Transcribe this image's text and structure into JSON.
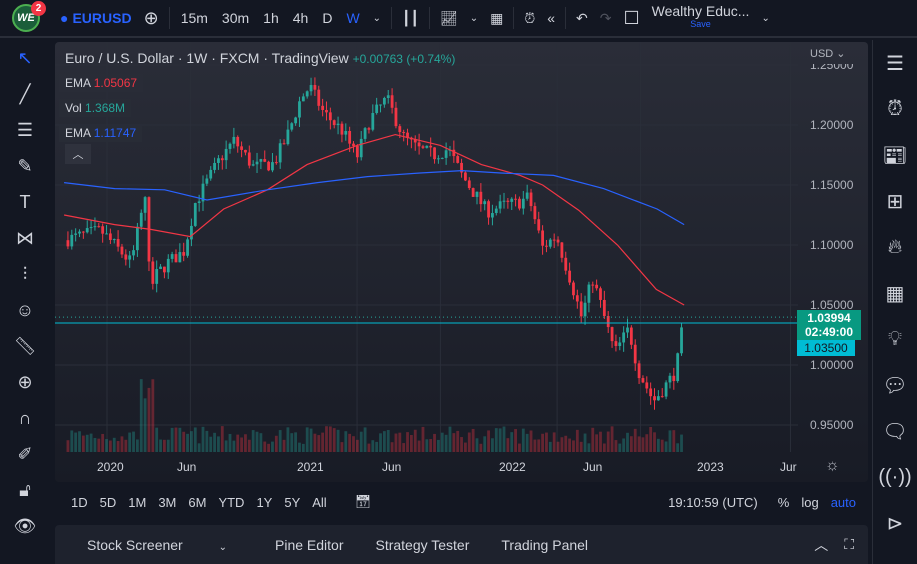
{
  "topbar": {
    "badge_count": "2",
    "logo": "WE",
    "symbol": "EURUSD",
    "intervals": [
      "15m",
      "30m",
      "1h",
      "4h",
      "D",
      "W"
    ],
    "active_interval": "W",
    "layout_name": "Wealthy Educ...",
    "save_label": "Save"
  },
  "legend": {
    "title": "Euro / U.S. Dollar · 1W · FXCM · TradingView",
    "change": "+0.00763 (+0.74%)",
    "indicators": [
      {
        "name": "EMA",
        "value": "1.05067",
        "color": "#f23645"
      },
      {
        "name": "Vol",
        "value": "1.368M",
        "color": "#26a69a"
      },
      {
        "name": "EMA",
        "value": "1.11747",
        "color": "#2962ff"
      }
    ],
    "collapse_icon": "chevron-up-icon"
  },
  "price_axis": {
    "currency": "USD",
    "ticks": [
      "1.25000",
      "1.20000",
      "1.15000",
      "1.10000",
      "1.05000",
      "1.00000",
      "0.95000"
    ],
    "last_price": "1.03994",
    "countdown": "02:49:00",
    "line_price": "1.03500"
  },
  "time_axis": {
    "labels": [
      "2020",
      "Jun",
      "2021",
      "Jun",
      "2022",
      "Jun",
      "2023",
      "Jur"
    ]
  },
  "range_bar": {
    "ranges": [
      "1D",
      "5D",
      "1M",
      "3M",
      "6M",
      "YTD",
      "1Y",
      "5Y",
      "All"
    ],
    "time": "19:10:59 (UTC)",
    "percent": "%",
    "log": "log",
    "auto": "auto"
  },
  "bottom_panel": {
    "tabs": [
      "Stock Screener",
      "Pine Editor",
      "Strategy Tester",
      "Trading Panel"
    ]
  },
  "colors": {
    "up": "#26a69a",
    "down": "#f23645",
    "ema_fast": "#f23645",
    "ema_slow": "#2962ff",
    "hline": "#00bcd4"
  },
  "chart_data": {
    "type": "candlestick",
    "interval": "weekly",
    "ylim": [
      0.94,
      1.255
    ],
    "price_path": [
      [
        "2019-10-14",
        1.104
      ],
      [
        "2019-12-20",
        1.112
      ],
      [
        "2020-02-15",
        1.085
      ],
      [
        "2020-03-09",
        1.14
      ],
      [
        "2020-03-20",
        1.07
      ],
      [
        "2020-04-20",
        1.085
      ],
      [
        "2020-05-20",
        1.095
      ],
      [
        "2020-06-10",
        1.135
      ],
      [
        "2020-07-25",
        1.172
      ],
      [
        "2020-08-20",
        1.187
      ],
      [
        "2020-09-25",
        1.165
      ],
      [
        "2020-11-01",
        1.168
      ],
      [
        "2020-11-25",
        1.19
      ],
      [
        "2020-12-20",
        1.222
      ],
      [
        "2021-01-06",
        1.232
      ],
      [
        "2021-02-01",
        1.21
      ],
      [
        "2021-03-05",
        1.195
      ],
      [
        "2021-03-31",
        1.173
      ],
      [
        "2021-04-25",
        1.205
      ],
      [
        "2021-05-25",
        1.222
      ],
      [
        "2021-06-25",
        1.19
      ],
      [
        "2021-07-20",
        1.18
      ],
      [
        "2021-08-20",
        1.175
      ],
      [
        "2021-09-15",
        1.18
      ],
      [
        "2021-10-10",
        1.158
      ],
      [
        "2021-11-25",
        1.128
      ],
      [
        "2021-12-25",
        1.133
      ],
      [
        "2022-01-20",
        1.135
      ],
      [
        "2022-02-10",
        1.14
      ],
      [
        "2022-03-05",
        1.098
      ],
      [
        "2022-03-30",
        1.108
      ],
      [
        "2022-04-25",
        1.072
      ],
      [
        "2022-05-15",
        1.04
      ],
      [
        "2022-06-05",
        1.072
      ],
      [
        "2022-06-20",
        1.05
      ],
      [
        "2022-07-15",
        1.01
      ],
      [
        "2022-08-10",
        1.03
      ],
      [
        "2022-08-28",
        0.995
      ],
      [
        "2022-09-25",
        0.97
      ],
      [
        "2022-10-20",
        0.985
      ],
      [
        "2022-11-05",
        0.995
      ],
      [
        "2022-11-20",
        1.04
      ]
    ],
    "ema_fast": [
      [
        "2019-10-14",
        1.125
      ],
      [
        "2020-01-15",
        1.117
      ],
      [
        "2020-03-20",
        1.113
      ],
      [
        "2020-06-01",
        1.107
      ],
      [
        "2020-08-01",
        1.13
      ],
      [
        "2020-10-20",
        1.146
      ],
      [
        "2021-01-01",
        1.167
      ],
      [
        "2021-04-01",
        1.183
      ],
      [
        "2021-06-10",
        1.192
      ],
      [
        "2021-09-01",
        1.183
      ],
      [
        "2021-11-15",
        1.167
      ],
      [
        "2022-01-25",
        1.158
      ],
      [
        "2022-03-05",
        1.15
      ],
      [
        "2022-05-10",
        1.129
      ],
      [
        "2022-07-20",
        1.1
      ],
      [
        "2022-09-30",
        1.063
      ],
      [
        "2022-11-20",
        1.05
      ]
    ],
    "ema_slow": [
      [
        "2019-10-14",
        1.152
      ],
      [
        "2020-01-15",
        1.147
      ],
      [
        "2020-04-15",
        1.146
      ],
      [
        "2020-07-01",
        1.1375
      ],
      [
        "2020-10-20",
        1.146
      ],
      [
        "2021-01-20",
        1.152
      ],
      [
        "2021-04-20",
        1.157
      ],
      [
        "2021-07-25",
        1.16
      ],
      [
        "2021-10-10",
        1.162
      ],
      [
        "2021-12-20",
        1.16
      ],
      [
        "2022-03-25",
        1.158
      ],
      [
        "2022-06-25",
        1.147
      ],
      [
        "2022-10-01",
        1.13
      ],
      [
        "2022-11-20",
        1.117
      ]
    ],
    "hline": 1.035
  }
}
